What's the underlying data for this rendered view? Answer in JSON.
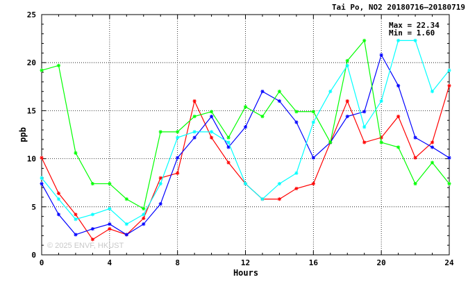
{
  "chart_data": {
    "type": "line",
    "title": "Tai Po, NO2 20180716–20180719",
    "xlabel": "Hours",
    "ylabel": "ppb",
    "xlim": [
      0,
      24
    ],
    "ylim": [
      0,
      25
    ],
    "xticks": [
      "0",
      "4",
      "8",
      "12",
      "16",
      "20",
      "24"
    ],
    "yticks": [
      "0",
      "5",
      "10",
      "15",
      "20",
      "25"
    ],
    "grid": true,
    "stats": {
      "max": "Max = 22.34",
      "min": "Min =  1.60"
    },
    "watermark": "© 2025  ENVF, HKUST",
    "x": [
      0,
      1,
      2,
      3,
      4,
      5,
      6,
      7,
      8,
      9,
      10,
      11,
      12,
      13,
      14,
      15,
      16,
      17,
      18,
      19,
      20,
      21,
      22,
      23,
      24
    ],
    "series": [
      {
        "color": "#ff0000",
        "values": [
          10.1,
          6.4,
          4.2,
          1.6,
          2.7,
          2.1,
          3.8,
          8.0,
          8.5,
          16.0,
          12.2,
          9.6,
          7.4,
          5.8,
          5.8,
          6.9,
          7.4,
          11.7,
          16.0,
          11.7,
          12.2,
          14.4,
          10.1,
          11.7,
          17.6
        ]
      },
      {
        "color": "#0000ff",
        "values": [
          7.4,
          4.2,
          2.1,
          2.7,
          3.2,
          2.1,
          3.2,
          5.3,
          10.1,
          12.2,
          14.4,
          11.2,
          13.3,
          17.0,
          16.0,
          13.8,
          10.1,
          11.7,
          14.4,
          14.9,
          20.8,
          17.6,
          12.2,
          11.2,
          10.1
        ]
      },
      {
        "color": "#00ff00",
        "values": [
          19.2,
          19.7,
          10.6,
          7.4,
          7.4,
          5.8,
          4.8,
          12.8,
          12.8,
          14.4,
          14.9,
          12.2,
          15.4,
          14.4,
          17.0,
          14.9,
          14.9,
          11.7,
          20.2,
          22.3,
          11.7,
          11.2,
          7.4,
          9.6,
          7.4
        ]
      },
      {
        "color": "#00ffff",
        "values": [
          8.0,
          5.8,
          3.7,
          4.2,
          4.8,
          3.2,
          4.2,
          7.4,
          12.2,
          12.8,
          12.8,
          11.7,
          7.4,
          5.8,
          7.4,
          8.5,
          13.8,
          17.0,
          19.7,
          13.3,
          16.0,
          22.3,
          22.3,
          17.0,
          19.2
        ]
      }
    ]
  }
}
